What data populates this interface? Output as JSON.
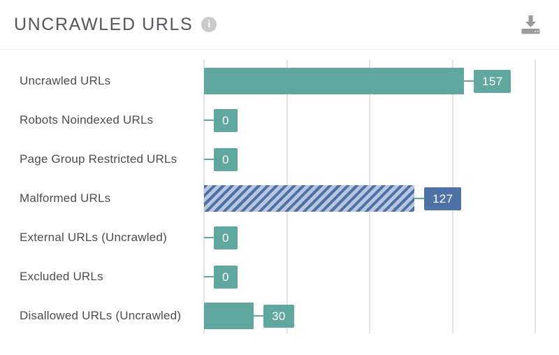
{
  "header": {
    "title": "UNCRAWLED URLS",
    "info_icon": "info-circle",
    "download_button": "download-chart"
  },
  "colors": {
    "teal": "#5FA79F",
    "blue": "#4E72A6",
    "hatch_light": "#B8C6E0",
    "gridline": "#E2E3E4",
    "divider": "#E8E8E8",
    "label_text": "#4A4D50",
    "title_text": "#53565A",
    "icon_gray": "#9B9B9B",
    "info_gray": "#C9CACB"
  },
  "chart_data": {
    "type": "bar",
    "orientation": "horizontal",
    "title": "UNCRAWLED URLS",
    "categories": [
      "Uncrawled URLs",
      "Robots Noindexed URLs",
      "Page Group Restricted URLs",
      "Malformed URLs",
      "External URLs (Uncrawled)",
      "Excluded URLs",
      "Disallowed URLs (Uncrawled)"
    ],
    "values": [
      157,
      0,
      0,
      127,
      0,
      0,
      30
    ],
    "rows": [
      {
        "label": "Uncrawled URLs",
        "value": 157,
        "value_label": "157",
        "variant": "solid-teal"
      },
      {
        "label": "Robots Noindexed URLs",
        "value": 0,
        "value_label": "0",
        "variant": "solid-teal"
      },
      {
        "label": "Page Group Restricted URLs",
        "value": 0,
        "value_label": "0",
        "variant": "solid-teal"
      },
      {
        "label": "Malformed URLs",
        "value": 127,
        "value_label": "127",
        "variant": "hatched-blue"
      },
      {
        "label": "External URLs (Uncrawled)",
        "value": 0,
        "value_label": "0",
        "variant": "solid-teal"
      },
      {
        "label": "Excluded URLs",
        "value": 0,
        "value_label": "0",
        "variant": "solid-teal"
      },
      {
        "label": "Disallowed URLs (Uncrawled)",
        "value": 30,
        "value_label": "30",
        "variant": "solid-teal"
      }
    ],
    "xlim": [
      0,
      200
    ],
    "gridlines": [
      0,
      50,
      100,
      150,
      200
    ],
    "x_tick_labels_visible": false,
    "legend": null
  }
}
